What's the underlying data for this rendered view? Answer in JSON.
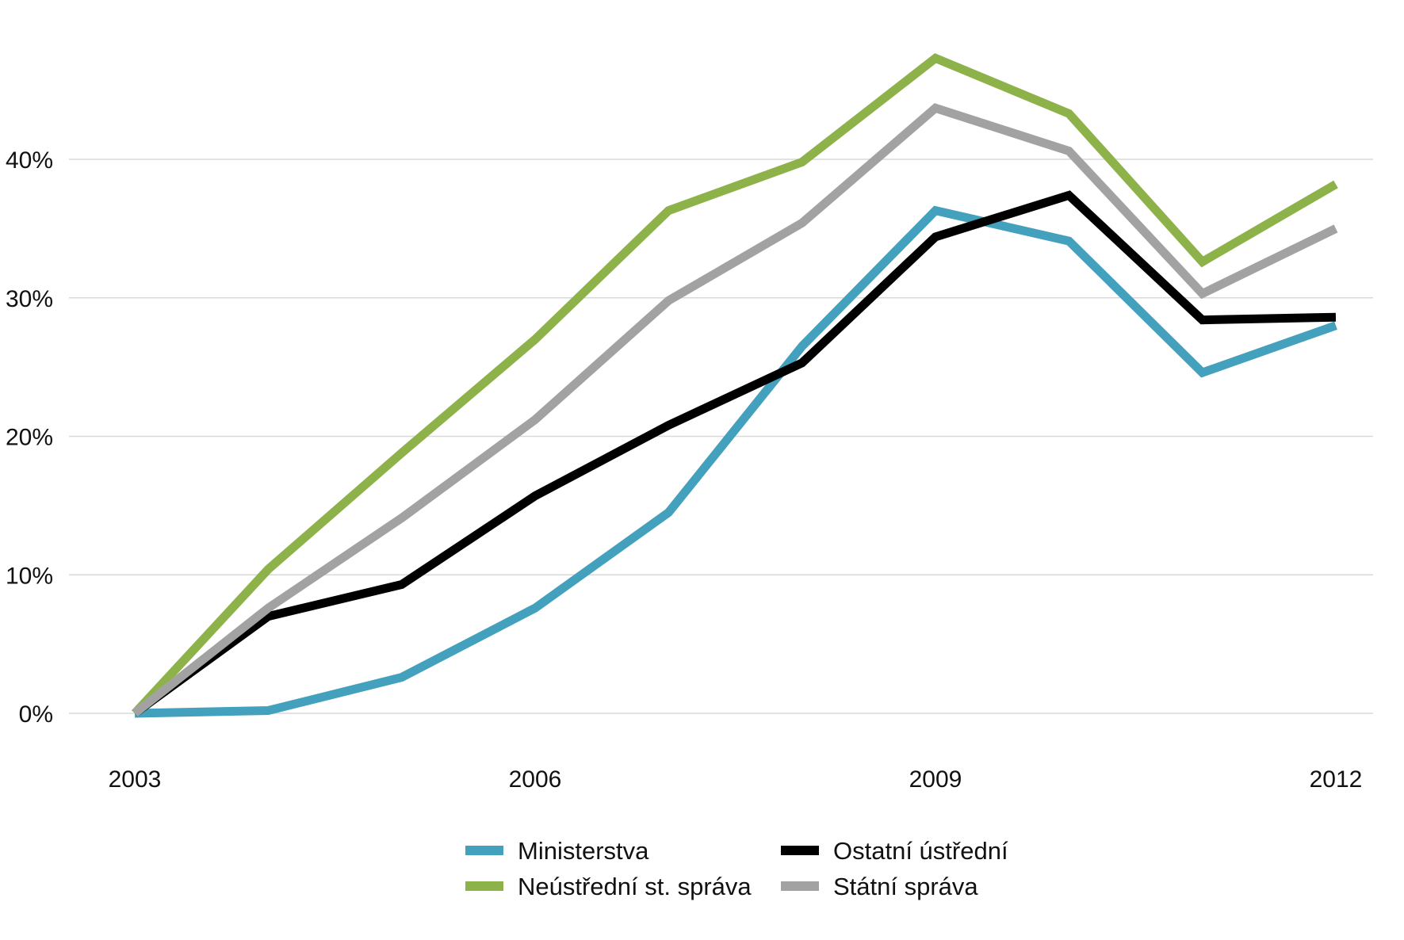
{
  "chart_data": {
    "type": "line",
    "title": "",
    "xlabel": "",
    "ylabel": "",
    "x": [
      2003,
      2004,
      2005,
      2006,
      2007,
      2008,
      2009,
      2010,
      2011,
      2012
    ],
    "xlim": [
      2003,
      2012
    ],
    "ylim": [
      0,
      46
    ],
    "x_ticks": [
      2003,
      2006,
      2009,
      2012
    ],
    "x_tick_labels": [
      "2003",
      "2006",
      "2009",
      "2012"
    ],
    "y_ticks": [
      0,
      10,
      20,
      30,
      40
    ],
    "y_tick_labels": [
      "0%",
      "10%",
      "20%",
      "30%",
      "40%"
    ],
    "grid": true,
    "legend_position": "bottom",
    "series": [
      {
        "name": "Ministerstva",
        "color": "#44a1bd",
        "values": [
          0.0,
          0.2,
          2.6,
          7.6,
          14.5,
          26.5,
          36.3,
          34.1,
          24.6,
          28.0
        ]
      },
      {
        "name": "Ostatní ústřední",
        "color": "#000000",
        "values": [
          0.0,
          7.0,
          9.3,
          15.7,
          20.8,
          25.3,
          34.4,
          37.4,
          28.4,
          28.6
        ]
      },
      {
        "name": "Neústřední st. správa",
        "color": "#8db24a",
        "values": [
          0.0,
          10.4,
          18.8,
          27.0,
          36.3,
          39.8,
          47.3,
          43.3,
          32.6,
          38.2
        ]
      },
      {
        "name": "Státní správa",
        "color": "#a2a2a2",
        "values": [
          0.0,
          7.6,
          14.1,
          21.2,
          29.8,
          35.4,
          43.7,
          40.6,
          30.3,
          35.0
        ]
      }
    ],
    "legend_entries": [
      {
        "name": "Ministerstva",
        "color": "#44a1bd"
      },
      {
        "name": "Ostatní ústřední",
        "color": "#000000"
      },
      {
        "name": "Neústřední st. správa",
        "color": "#8db24a"
      },
      {
        "name": "Státní správa",
        "color": "#a2a2a2"
      }
    ]
  }
}
